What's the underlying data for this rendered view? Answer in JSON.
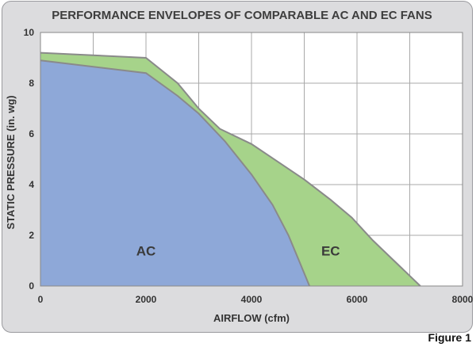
{
  "figure_label": "Figure 1",
  "chart_data": {
    "type": "area",
    "title": "PERFORMANCE ENVELOPES OF COMPARABLE AC AND EC FANS",
    "xlabel": "AIRFLOW (cfm)",
    "ylabel": "STATIC PRESSURE (in. wg)",
    "xlim": [
      0,
      8000
    ],
    "ylim": [
      0,
      10
    ],
    "x_ticks": [
      "0",
      "2000",
      "4000",
      "6000",
      "8000"
    ],
    "y_ticks": [
      "0",
      "2",
      "4",
      "6",
      "8",
      "10"
    ],
    "grid": true,
    "series": [
      {
        "name": "EC",
        "color": "#a6d38a",
        "points": [
          [
            0,
            9.2
          ],
          [
            2000,
            9.0
          ],
          [
            2600,
            8.0
          ],
          [
            3000,
            7.0
          ],
          [
            3400,
            6.2
          ],
          [
            4000,
            5.6
          ],
          [
            4500,
            4.9
          ],
          [
            5000,
            4.2
          ],
          [
            5500,
            3.4
          ],
          [
            5900,
            2.7
          ],
          [
            6300,
            1.8
          ],
          [
            6600,
            1.2
          ],
          [
            6900,
            0.6
          ],
          [
            7200,
            0
          ]
        ]
      },
      {
        "name": "AC",
        "color": "#8ea8d8",
        "points": [
          [
            0,
            8.9
          ],
          [
            2000,
            8.4
          ],
          [
            2600,
            7.5
          ],
          [
            3000,
            6.8
          ],
          [
            3500,
            5.7
          ],
          [
            4000,
            4.4
          ],
          [
            4400,
            3.2
          ],
          [
            4700,
            2.0
          ],
          [
            4900,
            1.0
          ],
          [
            5100,
            0
          ]
        ]
      }
    ]
  }
}
